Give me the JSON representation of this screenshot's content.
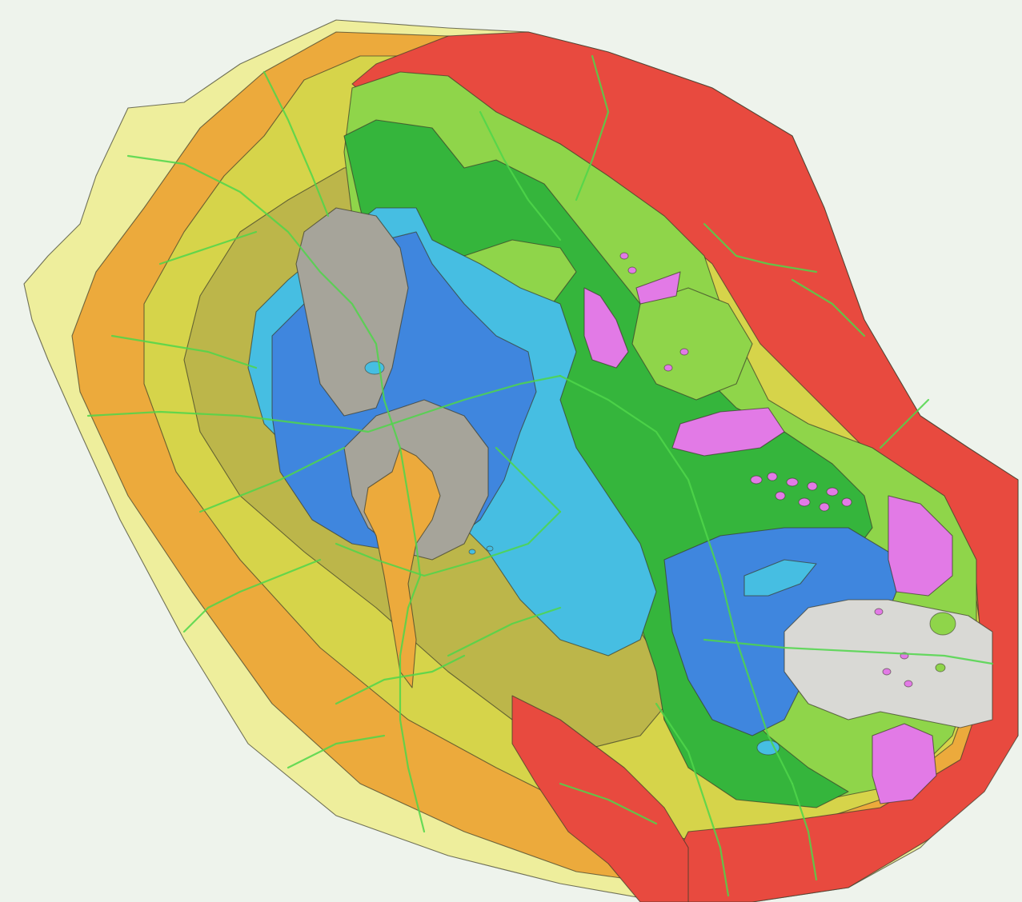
{
  "map": {
    "colors": {
      "background": "#eef3ec",
      "coast_pale_yellow": "#eeee9c",
      "orange": "#ecaa3c",
      "yellow_olive": "#d6d44a",
      "olive_dark": "#bcb64a",
      "light_green": "#8fd54a",
      "green": "#35b53c",
      "light_blue": "#46bee2",
      "blue": "#3f86de",
      "gray": "#a6a49a",
      "light_gray": "#d9d9d5",
      "pink": "#e27ae6",
      "red": "#e84a3f",
      "road_green": "#4fd64a",
      "boundary": "#3a3a2a"
    }
  }
}
